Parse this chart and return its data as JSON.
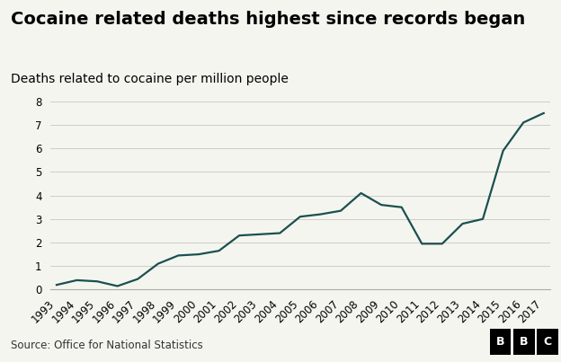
{
  "title": "Cocaine related deaths highest since records began",
  "subtitle": "Deaths related to cocaine per million people",
  "source": "Source: Office for National Statistics",
  "years": [
    1993,
    1994,
    1995,
    1996,
    1997,
    1998,
    1999,
    2000,
    2001,
    2002,
    2003,
    2004,
    2005,
    2006,
    2007,
    2008,
    2009,
    2010,
    2011,
    2012,
    2013,
    2014,
    2015,
    2016,
    2017
  ],
  "values": [
    0.2,
    0.4,
    0.35,
    0.15,
    0.45,
    1.1,
    1.45,
    1.5,
    1.65,
    2.3,
    2.35,
    2.4,
    3.1,
    3.2,
    3.35,
    4.1,
    3.6,
    3.5,
    1.95,
    1.95,
    2.8,
    3.0,
    5.9,
    7.1,
    7.5
  ],
  "line_color": "#1a5050",
  "background_color": "#f5f5f0",
  "plot_bg_color": "#f5f5f0",
  "ylim": [
    0,
    8
  ],
  "yticks": [
    0,
    1,
    2,
    3,
    4,
    5,
    6,
    7,
    8
  ],
  "grid_color": "#cccccc",
  "title_fontsize": 14,
  "subtitle_fontsize": 10,
  "source_fontsize": 8.5,
  "tick_fontsize": 8.5,
  "line_width": 1.6
}
